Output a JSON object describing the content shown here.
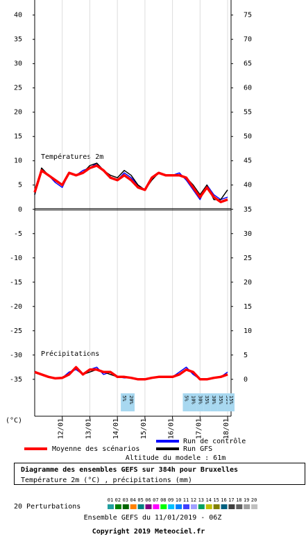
{
  "chart_data": {
    "type": "line",
    "ylabel": "(°C)",
    "ylim": [
      -42.6,
      43.1
    ],
    "yticks": [
      40,
      35,
      30,
      25,
      20,
      15,
      10,
      5,
      0,
      -5,
      -10,
      -15,
      -20,
      -25,
      -30,
      -35
    ],
    "y2lim": [
      -7.6,
      78.1
    ],
    "y2ticks": [
      75,
      70,
      65,
      60,
      55,
      50,
      45,
      40,
      35,
      30,
      25,
      20,
      15,
      10,
      5,
      0
    ],
    "xlim": [
      0,
      171
    ],
    "xticks": [
      {
        "value": 24,
        "label": "12/01"
      },
      {
        "value": 48,
        "label": "13/01"
      },
      {
        "value": 72,
        "label": "14/01"
      },
      {
        "value": 96,
        "label": "15/01"
      },
      {
        "value": 120,
        "label": "16/01"
      },
      {
        "value": 144,
        "label": "17/01"
      },
      {
        "value": 168,
        "label": "18/01"
      }
    ],
    "grid": true,
    "annotations": [
      "Températures 2m",
      "Précipitations"
    ],
    "x": [
      0,
      6,
      12,
      18,
      24,
      30,
      36,
      42,
      48,
      54,
      60,
      66,
      72,
      78,
      84,
      90,
      96,
      102,
      108,
      114,
      120,
      126,
      132,
      138,
      144,
      150,
      156,
      162,
      168
    ],
    "series": [
      {
        "name": "Run de contrôle",
        "color": "#0000ff",
        "values": [
          3,
          8,
          7,
          5.5,
          4.5,
          7.5,
          7,
          8,
          8.5,
          9.5,
          8,
          6.5,
          6,
          7.5,
          6.5,
          5,
          4,
          6.5,
          7.5,
          7,
          7,
          7.5,
          6,
          4,
          2,
          5,
          3,
          2,
          2.5
        ],
        "precipitation": [
          1.5,
          1,
          0.5,
          0.2,
          0.3,
          1.5,
          2,
          1,
          2,
          2.5,
          1,
          1.5,
          0.5,
          0.3,
          0.3,
          0,
          0,
          0.3,
          0.5,
          0.5,
          0.5,
          1.5,
          2.5,
          1,
          0,
          0,
          0.3,
          0.5,
          1.5
        ]
      },
      {
        "name": "Run GFS",
        "color": "#000000",
        "values": [
          3,
          8.5,
          7,
          6,
          5,
          7.5,
          7,
          7.5,
          9,
          9.5,
          8,
          7,
          6.5,
          8,
          7,
          5,
          4,
          6,
          7.5,
          7,
          7,
          7,
          6.5,
          5,
          3,
          5,
          2,
          2,
          4
        ],
        "precipitation": [
          1.5,
          1,
          0.5,
          0.3,
          0.3,
          1,
          2.5,
          1,
          1.5,
          2,
          1.5,
          1,
          0.5,
          0.5,
          0.3,
          0,
          0,
          0.3,
          0.5,
          0.5,
          0.5,
          1,
          2,
          1.5,
          0,
          0,
          0.3,
          0.5,
          1
        ]
      },
      {
        "name": "Moyenne des scénarios",
        "color": "#ff0000",
        "values": [
          3.5,
          8,
          7,
          6,
          5,
          7.5,
          7,
          7.5,
          8.5,
          9,
          8,
          6.5,
          6,
          7,
          6,
          4.5,
          4,
          6.5,
          7.5,
          7,
          7,
          7,
          6.5,
          4.5,
          2.5,
          4.5,
          2.5,
          1.5,
          2
        ],
        "precipitation": [
          1.5,
          1,
          0.5,
          0.2,
          0.3,
          1,
          2.5,
          1,
          2,
          2,
          1.5,
          1.5,
          0.5,
          0.5,
          0.3,
          0,
          0,
          0.3,
          0.5,
          0.5,
          0.5,
          1,
          2,
          1.5,
          0,
          0,
          0.3,
          0.5,
          1
        ]
      }
    ],
    "snow_probability": [
      {
        "x": 78,
        "label": "5%"
      },
      {
        "x": 84,
        "label": "20%"
      },
      {
        "x": 132,
        "label": "5%"
      },
      {
        "x": 138,
        "label": "10%"
      },
      {
        "x": 144,
        "label": "30%"
      },
      {
        "x": 150,
        "label": "35%"
      },
      {
        "x": 156,
        "label": "30%"
      },
      {
        "x": 162,
        "label": "35%"
      },
      {
        "x": 168,
        "label": "50%"
      },
      {
        "x": 171,
        "label": "15%"
      }
    ],
    "altitude": "Altitude du modele : 61m",
    "title": "Diagramme des ensembles GEFS sur 384h pour Bruxelles",
    "subtitle": "Température 2m (°C) , précipitations (mm)",
    "perturbations": {
      "label": "20 Perturbations",
      "members": [
        {
          "name": "01",
          "color": "#20a0a0"
        },
        {
          "name": "02",
          "color": "#008000"
        },
        {
          "name": "03",
          "color": "#006400"
        },
        {
          "name": "04",
          "color": "#ff8000"
        },
        {
          "name": "05",
          "color": "#008080"
        },
        {
          "name": "06",
          "color": "#800080"
        },
        {
          "name": "07",
          "color": "#ff00ff"
        },
        {
          "name": "08",
          "color": "#00ff00"
        },
        {
          "name": "09",
          "color": "#00c0ff"
        },
        {
          "name": "10",
          "color": "#0080ff"
        },
        {
          "name": "11",
          "color": "#4040ff"
        },
        {
          "name": "12",
          "color": "#a0a0ff"
        },
        {
          "name": "13",
          "color": "#00a060"
        },
        {
          "name": "14",
          "color": "#c0c000"
        },
        {
          "name": "15",
          "color": "#808000"
        },
        {
          "name": "16",
          "color": "#006080"
        },
        {
          "name": "17",
          "color": "#404040"
        },
        {
          "name": "18",
          "color": "#606060"
        },
        {
          "name": "19",
          "color": "#a0a0a0"
        },
        {
          "name": "20",
          "color": "#c0c0c0"
        }
      ]
    },
    "footer": "Ensemble GEFS du 11/01/2019 - 06Z",
    "copyright": "Copyright 2019 Meteociel.fr"
  }
}
